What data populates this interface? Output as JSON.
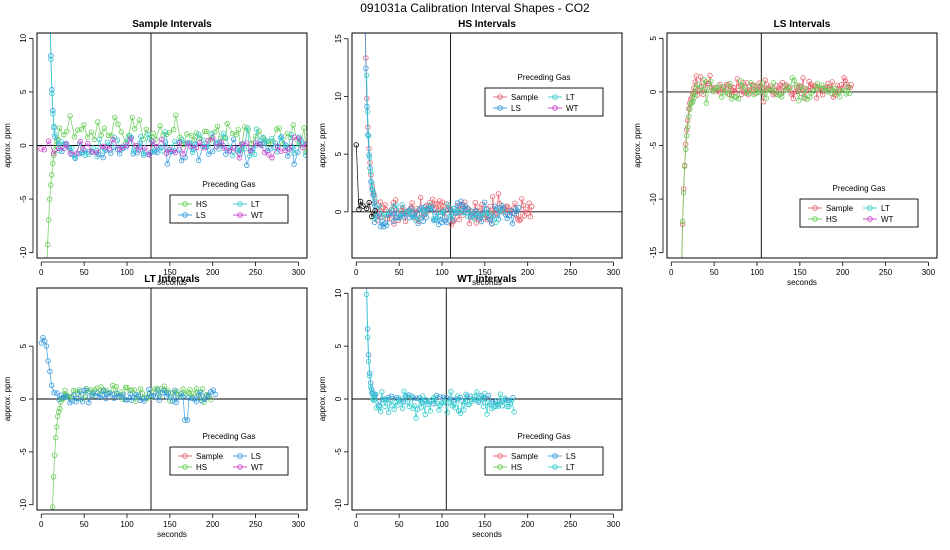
{
  "page_title": "091031a   Calibration Interval Shapes - CO2",
  "colors": {
    "Sample": "#E8636E",
    "HS": "#66CC55",
    "LS": "#3399DD",
    "LT": "#33CCCC",
    "WT": "#CC44CC",
    "early": "#000000"
  },
  "chart_data": [
    {
      "type": "scatter",
      "title": "Sample Intervals",
      "xlabel": "seconds",
      "ylabel": "approx. ppm",
      "xlim": [
        -5,
        310
      ],
      "ylim": [
        -10.5,
        10.5
      ],
      "xticks": [
        0,
        50,
        100,
        150,
        200,
        250,
        300
      ],
      "yticks": [
        -10,
        -5,
        0,
        5,
        10
      ],
      "vline": 128,
      "legend_title": "Preceding Gas",
      "legend_layout": [
        [
          "HS",
          "LT"
        ],
        [
          "LS",
          "WT"
        ]
      ],
      "series": [
        {
          "name": "HS",
          "seed": 11,
          "spike": {
            "x0": 5,
            "y0": -16,
            "x1": 20,
            "t": 5
          },
          "start": 22,
          "end": 310,
          "step": 4,
          "mean": 1.6,
          "noise": 1.0,
          "tailmean": 0.8
        },
        {
          "name": "LS",
          "seed": 12,
          "spike": {
            "x0": 10,
            "y0": 14,
            "x1": 16,
            "t": 2.5
          },
          "start": 20,
          "end": 310,
          "step": 4,
          "mean": -0.3,
          "noise": 0.9
        },
        {
          "name": "LT",
          "seed": 13,
          "spike": {
            "x0": 10,
            "y0": 13,
            "x1": 16,
            "t": 2.5
          },
          "start": 20,
          "end": 310,
          "step": 4,
          "mean": 0.1,
          "noise": 0.9
        },
        {
          "name": "WT",
          "seed": 14,
          "start": 0,
          "end": 310,
          "step": 5,
          "mean": -0.2,
          "noise": 0.7
        }
      ]
    },
    {
      "type": "scatter",
      "title": "HS Intervals",
      "xlabel": "seconds",
      "ylabel": "approx. ppm",
      "xlim": [
        -5,
        310
      ],
      "ylim": [
        -4,
        15.5
      ],
      "xticks": [
        0,
        50,
        100,
        150,
        200,
        250,
        300
      ],
      "yticks": [
        0,
        5,
        10,
        15
      ],
      "vline": 110,
      "legend_title": "Preceding Gas",
      "legend_layout": [
        [
          "Sample",
          "LT"
        ],
        [
          "LS",
          "WT"
        ]
      ],
      "series": [
        {
          "name": "Sample",
          "seed": 21,
          "spike": {
            "x0": 10,
            "y0": 18,
            "x1": 22,
            "t": 4
          },
          "start": 22,
          "end": 205,
          "step": 1.6,
          "mean": 0.1,
          "noise": 0.9
        },
        {
          "name": "LS",
          "seed": 22,
          "spike": {
            "x0": 10,
            "y0": 17,
            "x1": 22,
            "t": 4
          },
          "start": 22,
          "end": 190,
          "step": 2,
          "mean": -0.2,
          "noise": 0.8
        },
        {
          "name": "LT",
          "seed": 23,
          "spike": {
            "x0": 12,
            "y0": 12,
            "x1": 22,
            "t": 4
          },
          "start": 22,
          "end": 170,
          "step": 4,
          "mean": -0.1,
          "noise": 0.6
        },
        {
          "name": "early",
          "seed": 24,
          "points": [
            [
              0,
              5.8
            ],
            [
              3,
              0.2
            ],
            [
              5,
              0.9
            ],
            [
              8,
              0.5
            ],
            [
              12,
              0.3
            ],
            [
              15,
              0.8
            ],
            [
              18,
              -0.4
            ],
            [
              22,
              0.1
            ]
          ]
        }
      ]
    },
    {
      "type": "scatter",
      "title": "LS Intervals",
      "xlabel": "seconds",
      "ylabel": "approx. ppm",
      "xlim": [
        -5,
        310
      ],
      "ylim": [
        -15.5,
        5.5
      ],
      "xticks": [
        0,
        50,
        100,
        150,
        200,
        250,
        300
      ],
      "yticks": [
        -15,
        -10,
        -5,
        0,
        5
      ],
      "vline": 105,
      "legend_title": "Preceding Gas",
      "legend_layout": [
        [
          "Sample",
          "LT"
        ],
        [
          "HS",
          "WT"
        ]
      ],
      "series": [
        {
          "name": "Sample",
          "seed": 31,
          "spike": {
            "x0": 12,
            "y0": -17,
            "x1": 28,
            "t": 4
          },
          "start": 26,
          "end": 210,
          "step": 1.6,
          "mean": 0.4,
          "noise": 0.8
        },
        {
          "name": "HS",
          "seed": 32,
          "spike": {
            "x0": 12,
            "y0": -16,
            "x1": 28,
            "t": 4.5
          },
          "start": 26,
          "end": 210,
          "step": 2.5,
          "mean": 0.2,
          "noise": 0.8
        }
      ]
    },
    {
      "type": "scatter",
      "title": "LT Intervals",
      "xlabel": "seconds",
      "ylabel": "approx. ppm",
      "xlim": [
        -5,
        310
      ],
      "ylim": [
        -10.5,
        10.5
      ],
      "xticks": [
        0,
        50,
        100,
        150,
        200,
        250,
        300
      ],
      "yticks": [
        -10,
        -5,
        0,
        5
      ],
      "vline": 128,
      "legend_title": "Preceding Gas",
      "legend_layout": [
        [
          "Sample",
          "LS"
        ],
        [
          "HS",
          "WT"
        ]
      ],
      "series": [
        {
          "name": "HS",
          "seed": 41,
          "spike": {
            "x0": 12,
            "y0": -14,
            "x1": 30,
            "t": 4
          },
          "start": 28,
          "end": 200,
          "step": 2.5,
          "mean": 0.6,
          "noise": 0.6
        },
        {
          "name": "LS",
          "seed": 42,
          "points": [
            [
              0,
              5.3
            ],
            [
              2,
              5.8
            ],
            [
              4,
              5.5
            ],
            [
              6,
              5.0
            ],
            [
              8,
              3.6
            ],
            [
              10,
              2.6
            ],
            [
              12,
              1.3
            ],
            [
              15,
              0.6
            ]
          ],
          "start": 18,
          "end": 205,
          "step": 2.5,
          "mean": 0.3,
          "noise": 0.5,
          "dip": [
            170,
            -2
          ]
        }
      ]
    },
    {
      "type": "scatter",
      "title": "WT Intervals",
      "xlabel": "seconds",
      "ylabel": "approx. ppm",
      "xlim": [
        -5,
        310
      ],
      "ylim": [
        -10.5,
        10.5
      ],
      "xticks": [
        0,
        50,
        100,
        150,
        200,
        250,
        300
      ],
      "yticks": [
        -10,
        -5,
        0,
        5,
        10
      ],
      "vline": 105,
      "legend_title": "Preceding Gas",
      "legend_layout": [
        [
          "Sample",
          "LS"
        ],
        [
          "HS",
          "LT"
        ]
      ],
      "series": [
        {
          "name": "LS",
          "seed": 51,
          "spike": {
            "x0": 12,
            "y0": 11,
            "x1": 22,
            "t": 2.5
          },
          "start": 22,
          "end": 185,
          "step": 4,
          "mean": 0.0,
          "noise": 0.4
        },
        {
          "name": "LT",
          "seed": 52,
          "spike": {
            "x0": 12,
            "y0": 10,
            "x1": 22,
            "t": 2.5
          },
          "start": 22,
          "end": 185,
          "step": 2,
          "mean": -0.4,
          "noise": 0.9
        }
      ]
    }
  ]
}
